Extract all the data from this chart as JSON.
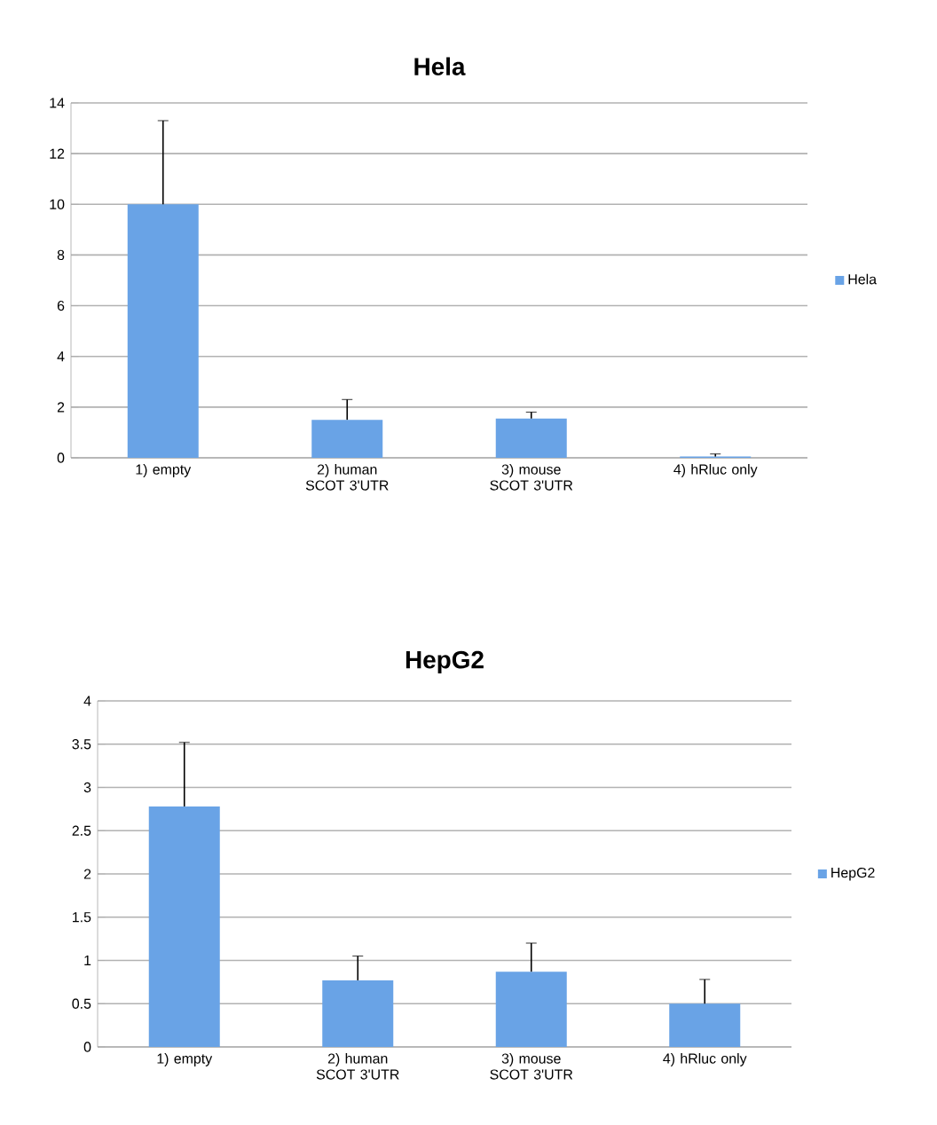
{
  "chart_data": [
    {
      "type": "bar",
      "title": "Hela",
      "categories": [
        "1) empty",
        "2) human SCOT 3'UTR",
        "3) mouse SCOT 3'UTR",
        "4) hRluc only"
      ],
      "series": [
        {
          "name": "Hela",
          "color": "#69a3e6",
          "values": [
            10,
            1.5,
            1.55,
            0.05
          ],
          "errors": [
            [
              10,
              13.3
            ],
            [
              1.5,
              2.3
            ],
            [
              1.55,
              1.8
            ],
            [
              0.05,
              0.15
            ]
          ]
        }
      ],
      "ylim": [
        0,
        14
      ],
      "yticks": [
        0,
        2,
        4,
        6,
        8,
        10,
        12,
        14
      ],
      "grid": "y",
      "legend": "right"
    },
    {
      "type": "bar",
      "title": "HepG2",
      "categories": [
        "1) empty",
        "2) human SCOT 3'UTR",
        "3) mouse SCOT 3'UTR",
        "4) hRluc only"
      ],
      "series": [
        {
          "name": "HepG2",
          "color": "#69a3e6",
          "values": [
            2.78,
            0.77,
            0.87,
            0.5
          ],
          "errors": [
            [
              2.78,
              3.52
            ],
            [
              0.77,
              1.05
            ],
            [
              0.87,
              1.2
            ],
            [
              0.5,
              0.78
            ]
          ]
        }
      ],
      "ylim": [
        0,
        4
      ],
      "yticks": [
        0,
        0.5,
        1,
        1.5,
        2,
        2.5,
        3,
        3.5,
        4
      ],
      "grid": "y",
      "legend": "right"
    }
  ]
}
